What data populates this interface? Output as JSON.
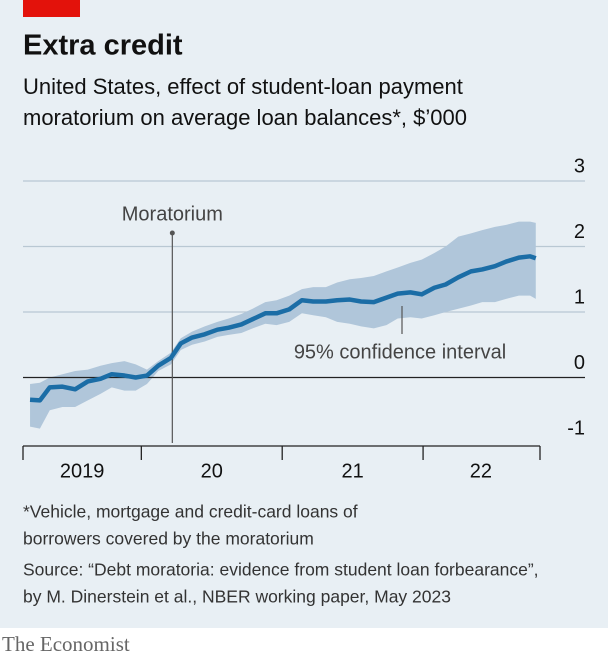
{
  "chart_data": {
    "type": "line",
    "title": "Extra credit",
    "subtitle": [
      "United States, effect of student-loan payment",
      "moratorium on average loan balances*, $’000"
    ],
    "x": [
      2019.21,
      2019.28,
      2019.35,
      2019.44,
      2019.53,
      2019.62,
      2019.71,
      2019.79,
      2019.88,
      2019.96,
      2020.04,
      2020.12,
      2020.21,
      2020.28,
      2020.36,
      2020.45,
      2020.54,
      2020.62,
      2020.71,
      2020.79,
      2020.88,
      2020.96,
      2021.05,
      2021.14,
      2021.22,
      2021.31,
      2021.39,
      2021.48,
      2021.56,
      2021.65,
      2021.74,
      2021.82,
      2021.91,
      2021.99,
      2022.08,
      2022.16,
      2022.25,
      2022.34,
      2022.42,
      2022.51,
      2022.59,
      2022.68,
      2022.76,
      2022.8
    ],
    "values": [
      -0.34,
      -0.35,
      -0.15,
      -0.14,
      -0.18,
      -0.06,
      -0.02,
      0.05,
      0.03,
      0.0,
      0.03,
      0.18,
      0.3,
      0.52,
      0.61,
      0.66,
      0.73,
      0.76,
      0.81,
      0.89,
      0.98,
      0.98,
      1.04,
      1.18,
      1.16,
      1.16,
      1.18,
      1.19,
      1.16,
      1.15,
      1.22,
      1.28,
      1.3,
      1.27,
      1.37,
      1.42,
      1.53,
      1.62,
      1.65,
      1.7,
      1.77,
      1.83,
      1.85,
      1.82
    ],
    "color": "#1b6da6",
    "band": {
      "label": "95% confidence interval",
      "color": "#b0c6da",
      "upper": [
        -0.1,
        -0.08,
        0.0,
        0.05,
        0.1,
        0.12,
        0.18,
        0.22,
        0.25,
        0.2,
        0.12,
        0.25,
        0.38,
        0.6,
        0.7,
        0.78,
        0.85,
        0.9,
        0.97,
        1.05,
        1.15,
        1.18,
        1.25,
        1.35,
        1.38,
        1.38,
        1.45,
        1.5,
        1.52,
        1.55,
        1.62,
        1.68,
        1.75,
        1.8,
        1.9,
        2.0,
        2.15,
        2.2,
        2.25,
        2.3,
        2.33,
        2.38,
        2.38,
        2.36
      ],
      "lower": [
        -0.75,
        -0.78,
        -0.5,
        -0.45,
        -0.45,
        -0.35,
        -0.25,
        -0.15,
        -0.2,
        -0.2,
        -0.1,
        0.1,
        0.2,
        0.42,
        0.5,
        0.55,
        0.62,
        0.65,
        0.68,
        0.75,
        0.82,
        0.8,
        0.85,
        0.98,
        0.95,
        0.92,
        0.85,
        0.82,
        0.78,
        0.75,
        0.8,
        0.9,
        0.92,
        0.9,
        0.95,
        1.0,
        1.05,
        1.1,
        1.15,
        1.15,
        1.2,
        1.25,
        1.25,
        1.2
      ]
    },
    "moratorium": {
      "label": "Moratorium",
      "x": 2020.22
    },
    "xlim": [
      2019.16,
      2022.83
    ],
    "xticks": [
      2020,
      2021,
      2022
    ],
    "x_period_labels": [
      {
        "value": 2019.58,
        "label": "2019"
      },
      {
        "value": 2020.5,
        "label": "20"
      },
      {
        "value": 2021.5,
        "label": "21"
      },
      {
        "value": 2022.41,
        "label": "22"
      }
    ],
    "ylim": [
      -1,
      3
    ],
    "yticks": [
      3,
      2,
      1,
      0,
      -1
    ],
    "grid": true,
    "footnote": [
      "*Vehicle, mortgage and credit-card loans of",
      "borrowers covered by the moratorium"
    ],
    "source": [
      "Source: “Debt moratoria: evidence from student loan forbearance”,",
      "by M. Dinerstein et al., NBER working paper, May 2023"
    ],
    "brand": "The Economist"
  }
}
